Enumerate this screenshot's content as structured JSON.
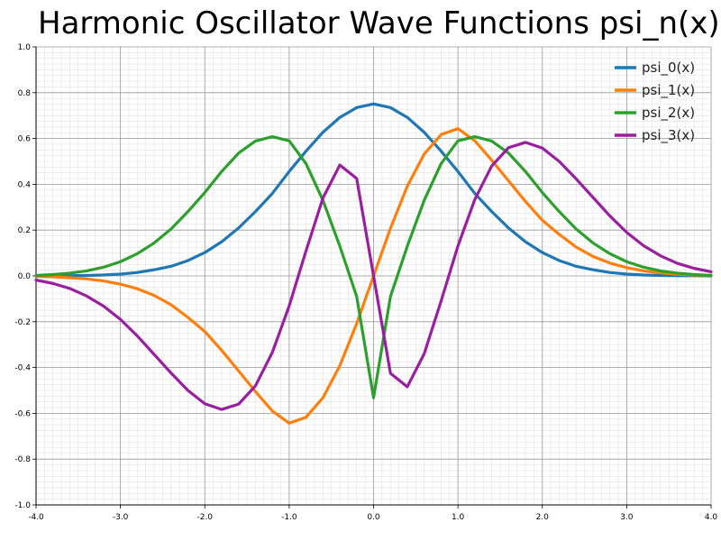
{
  "chart_data": {
    "type": "line",
    "title": "Harmonic Oscillator Wave Functions psi_n(x)",
    "xlabel": "",
    "ylabel": "",
    "xlim": [
      -4.0,
      4.0
    ],
    "ylim": [
      -1.0,
      1.0
    ],
    "grid": true,
    "legend_position": "top-right",
    "x_ticks": [
      "-4.0",
      "-3.0",
      "-2.0",
      "-1.0",
      "0.0",
      "1.0",
      "2.0",
      "3.0",
      "4.0"
    ],
    "y_ticks": [
      "-1.0",
      "-0.8",
      "-0.6",
      "-0.4",
      "-0.2",
      "0.0",
      "0.2",
      "0.4",
      "0.6",
      "0.8",
      "1.0"
    ],
    "x": [
      -4.0,
      -3.8,
      -3.6,
      -3.4,
      -3.2,
      -3.0,
      -2.8,
      -2.6,
      -2.4,
      -2.2,
      -2.0,
      -1.8,
      -1.6,
      -1.4,
      -1.2,
      -1.0,
      -0.8,
      -0.6,
      -0.4,
      -0.2,
      0.0,
      0.2,
      0.4,
      0.6,
      0.8,
      1.0,
      1.2,
      1.4,
      1.6,
      1.8,
      2.0,
      2.2,
      2.4,
      2.6,
      2.8,
      3.0,
      3.2,
      3.4,
      3.6,
      3.8,
      4.0
    ],
    "series": [
      {
        "name": "psi_0(x)",
        "color": "#1f77b4",
        "values": [
          0.0,
          0.001,
          0.001,
          0.002,
          0.004,
          0.008,
          0.015,
          0.027,
          0.042,
          0.067,
          0.102,
          0.149,
          0.209,
          0.281,
          0.36,
          0.456,
          0.545,
          0.627,
          0.692,
          0.735,
          0.751,
          0.735,
          0.692,
          0.627,
          0.545,
          0.456,
          0.36,
          0.281,
          0.209,
          0.149,
          0.102,
          0.067,
          0.042,
          0.027,
          0.015,
          0.008,
          0.004,
          0.002,
          0.001,
          0.001,
          0.0
        ]
      },
      {
        "name": "psi_1(x)",
        "color": "#ff7f0e",
        "values": [
          -0.002,
          -0.004,
          -0.008,
          -0.013,
          -0.022,
          -0.036,
          -0.056,
          -0.085,
          -0.126,
          -0.181,
          -0.243,
          -0.325,
          -0.415,
          -0.505,
          -0.59,
          -0.643,
          -0.617,
          -0.532,
          -0.392,
          -0.208,
          0.0,
          0.208,
          0.392,
          0.532,
          0.617,
          0.643,
          0.59,
          0.505,
          0.415,
          0.325,
          0.243,
          0.181,
          0.126,
          0.085,
          0.056,
          0.036,
          0.022,
          0.013,
          0.008,
          0.004,
          0.002
        ]
      },
      {
        "name": "psi_2(x)",
        "color": "#2ca02c",
        "values": [
          0.002,
          0.006,
          0.012,
          0.022,
          0.038,
          0.062,
          0.097,
          0.144,
          0.205,
          0.281,
          0.364,
          0.456,
          0.536,
          0.589,
          0.608,
          0.59,
          0.49,
          0.33,
          0.13,
          -0.09,
          -0.532,
          -0.09,
          0.13,
          0.33,
          0.49,
          0.59,
          0.608,
          0.589,
          0.536,
          0.456,
          0.364,
          0.281,
          0.205,
          0.144,
          0.097,
          0.062,
          0.038,
          0.022,
          0.012,
          0.006,
          0.002
        ]
      },
      {
        "name": "psi_3(x)",
        "color": "#9a1fa0",
        "values": [
          -0.018,
          -0.033,
          -0.055,
          -0.088,
          -0.132,
          -0.19,
          -0.262,
          -0.343,
          -0.424,
          -0.5,
          -0.558,
          -0.583,
          -0.56,
          -0.48,
          -0.334,
          -0.131,
          0.11,
          0.34,
          0.484,
          0.425,
          0.0,
          -0.425,
          -0.484,
          -0.34,
          -0.11,
          0.131,
          0.334,
          0.48,
          0.56,
          0.583,
          0.558,
          0.5,
          0.424,
          0.343,
          0.262,
          0.19,
          0.132,
          0.088,
          0.055,
          0.033,
          0.018
        ]
      }
    ]
  }
}
